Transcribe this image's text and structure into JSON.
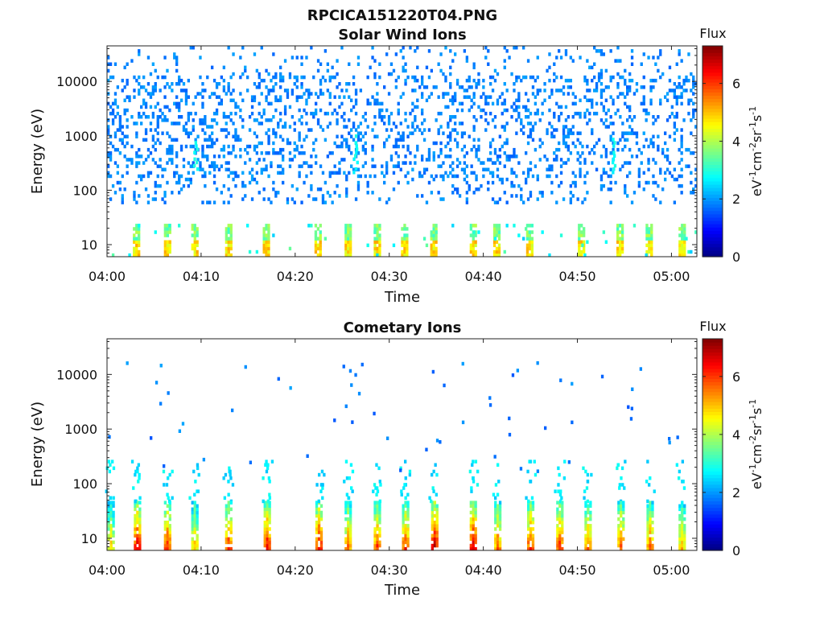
{
  "figure": {
    "filename": "RPCICA151220T04.PNG"
  },
  "colorbar": {
    "label": "Flux",
    "unit_parts": [
      "eV",
      "-1",
      "cm",
      "-2",
      "sr",
      "-1",
      "s",
      "-1"
    ],
    "ticks": [
      "0",
      "2",
      "4",
      "6"
    ],
    "range": [
      0,
      7.3
    ],
    "colormap": "jet"
  },
  "chart_data": [
    {
      "type": "heatmap",
      "title": "Solar Wind Ions",
      "xlabel": "Time",
      "ylabel": "Energy (eV)",
      "x_ticks": [
        "04:00",
        "04:10",
        "04:20",
        "04:30",
        "04:40",
        "04:50",
        "05:00"
      ],
      "y_ticks": [
        "10",
        "100",
        "1000",
        "10000"
      ],
      "y_scale": "log",
      "xlim_minutes": [
        0,
        62.7
      ],
      "ylim": [
        6,
        45000
      ],
      "low_energy_bursts_min": [
        3,
        6.3,
        9.2,
        12.8,
        16.8,
        22.3,
        25.5,
        28.6,
        31.5,
        34.6,
        38.8,
        41.3,
        44.8,
        50.3,
        54.4,
        57.5,
        61
      ],
      "high_energy_streaks_min": [
        9.3,
        26.3,
        53.8
      ]
    },
    {
      "type": "heatmap",
      "title": "Cometary Ions",
      "xlabel": "Time",
      "ylabel": "Energy (eV)",
      "x_ticks": [
        "04:00",
        "04:10",
        "04:20",
        "04:30",
        "04:40",
        "04:50",
        "05:00"
      ],
      "y_ticks": [
        "10",
        "100",
        "1000",
        "10000"
      ],
      "y_scale": "log",
      "xlim_minutes": [
        0,
        62.7
      ],
      "ylim": [
        6,
        45000
      ],
      "bursts": [
        {
          "t": 0.3,
          "peak": 5
        },
        {
          "t": 3.1,
          "peak": 6.7
        },
        {
          "t": 6.3,
          "peak": 6.3
        },
        {
          "t": 9.2,
          "peak": 5.2
        },
        {
          "t": 12.8,
          "peak": 6.2
        },
        {
          "t": 16.9,
          "peak": 6.5
        },
        {
          "t": 22.4,
          "peak": 6.6
        },
        {
          "t": 25.5,
          "peak": 5.6
        },
        {
          "t": 28.6,
          "peak": 6.1
        },
        {
          "t": 31.6,
          "peak": 6.2
        },
        {
          "t": 34.7,
          "peak": 6.9
        },
        {
          "t": 38.8,
          "peak": 6.8
        },
        {
          "t": 41.4,
          "peak": 5.8
        },
        {
          "t": 44.9,
          "peak": 6.3
        },
        {
          "t": 48,
          "peak": 6.2
        },
        {
          "t": 51,
          "peak": 5.8
        },
        {
          "t": 54.5,
          "peak": 5.9
        },
        {
          "t": 57.6,
          "peak": 5.8
        },
        {
          "t": 61,
          "peak": 5.3
        }
      ]
    }
  ]
}
